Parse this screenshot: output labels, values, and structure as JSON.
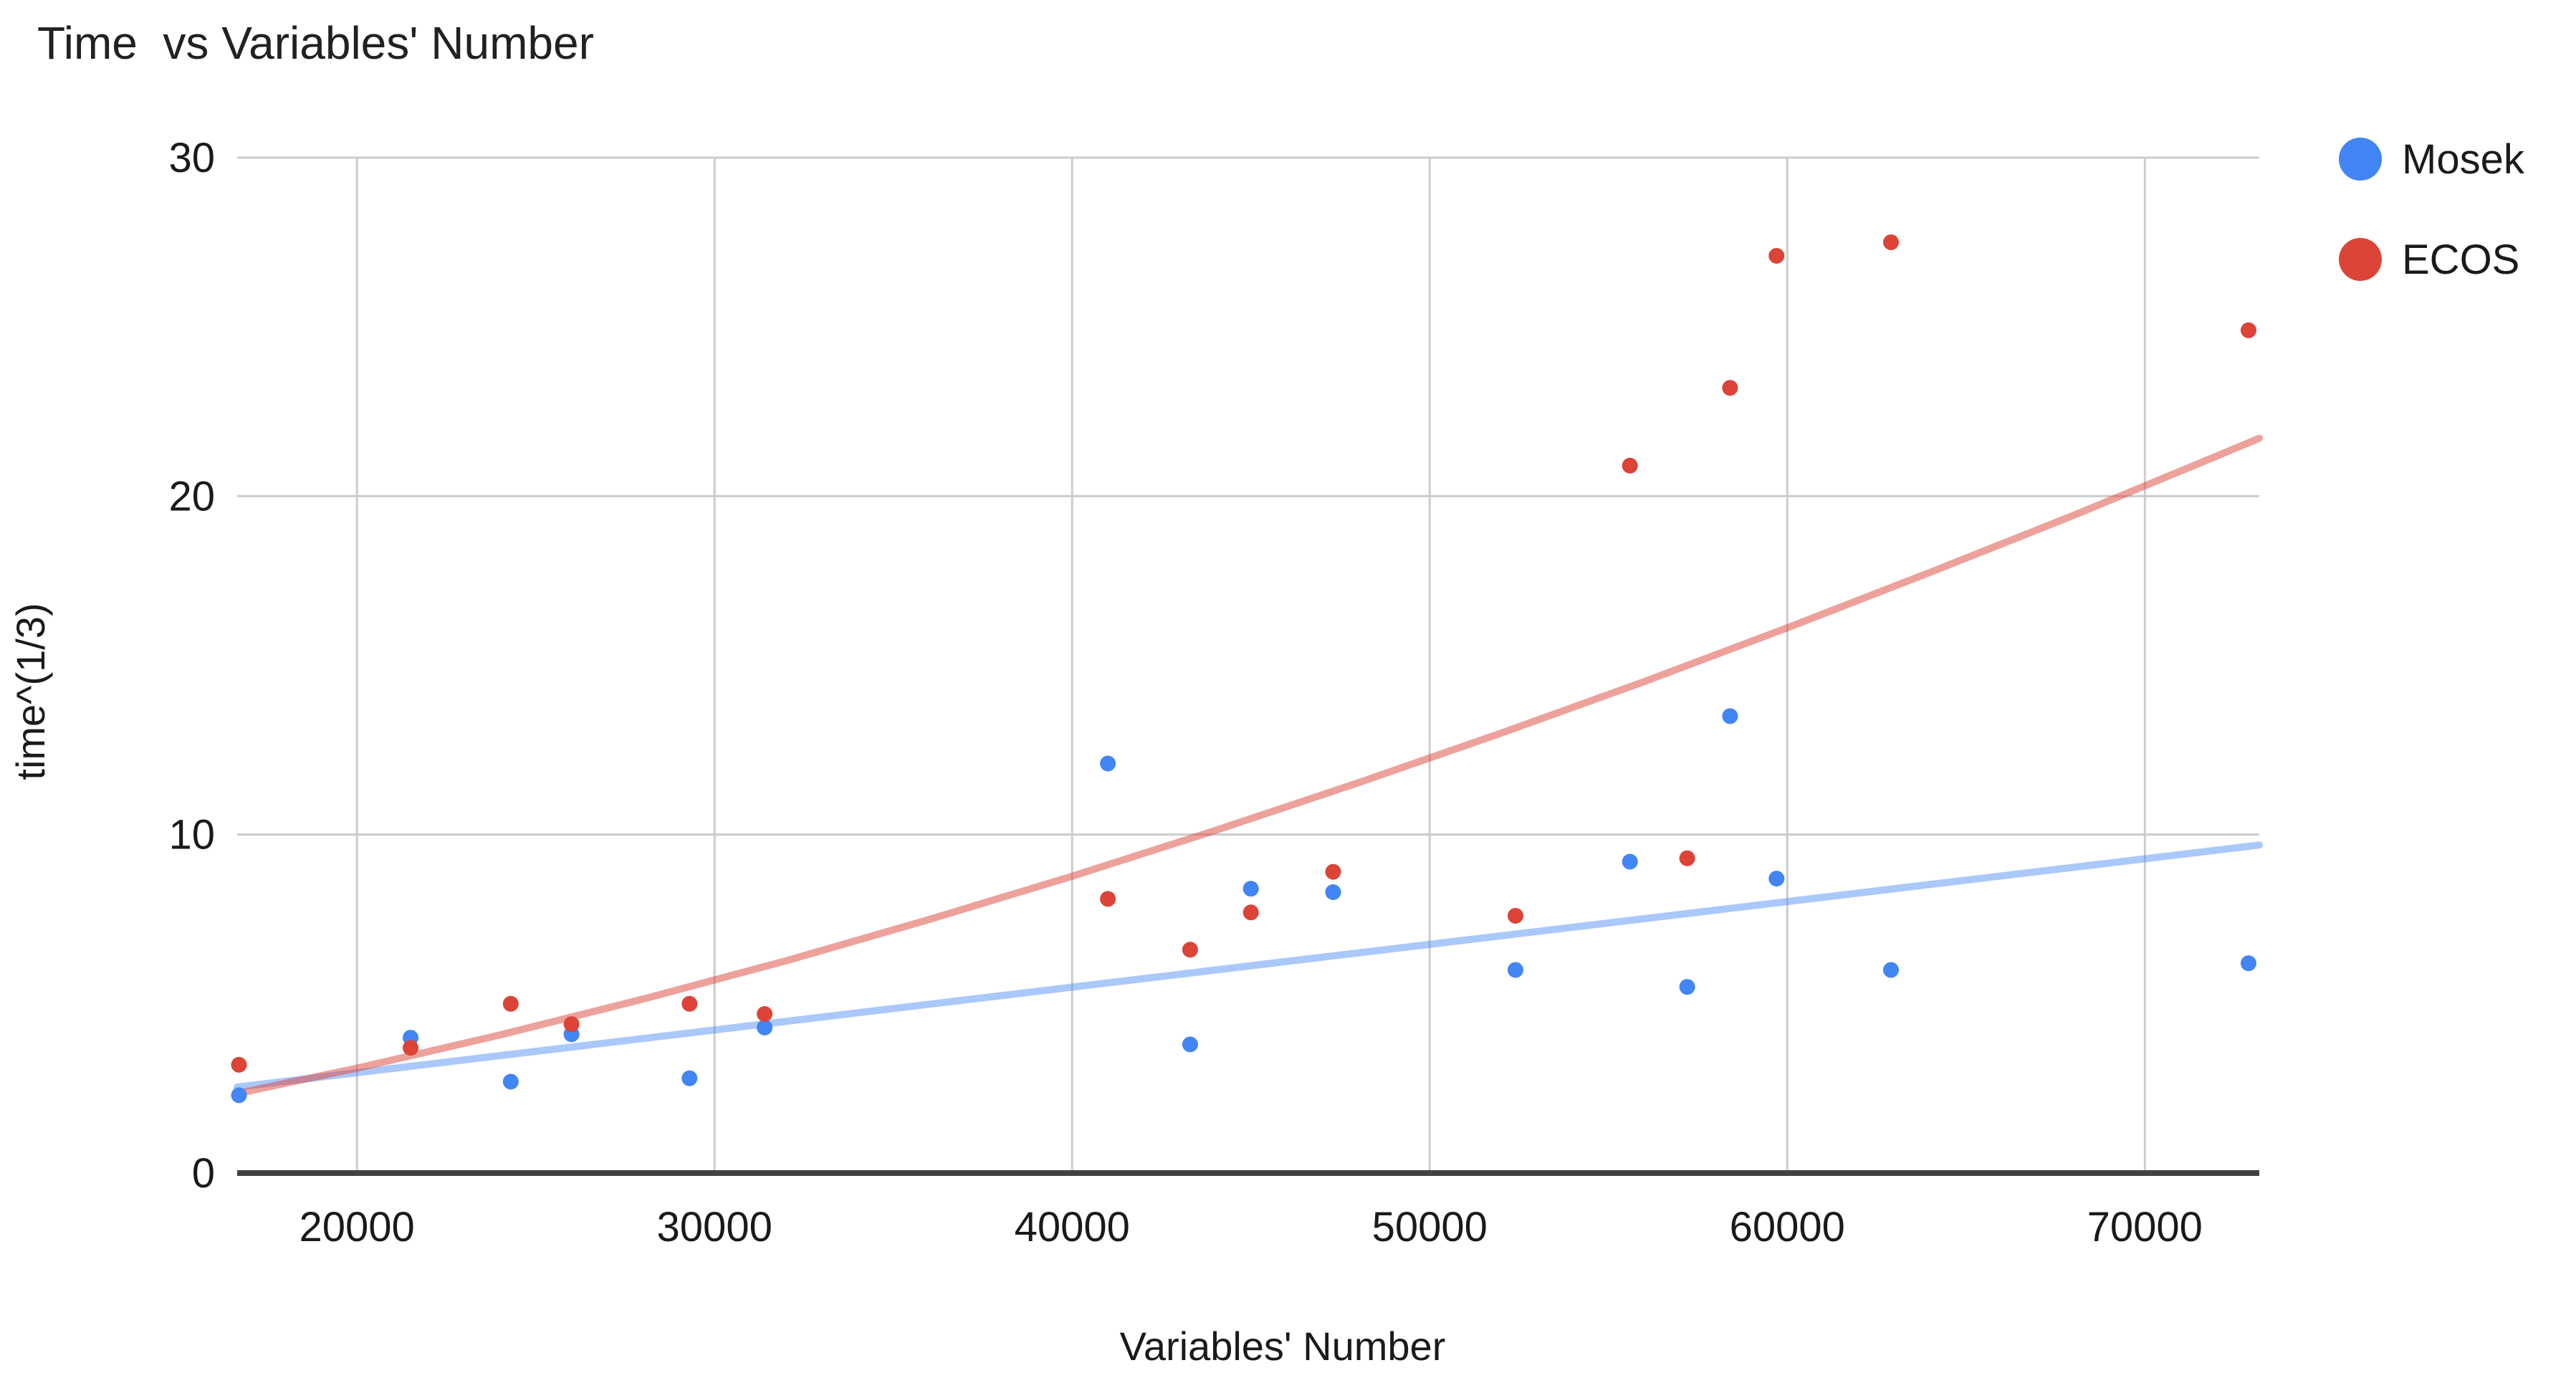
{
  "chart_title": "Time  vs Variables' Number",
  "colors": {
    "mosek_point": "#4285f4",
    "ecos_point": "#db4437",
    "mosek_trend": "rgba(66,133,244,0.45)",
    "ecos_trend": "rgba(219,68,55,0.5)",
    "gridline": "#cccccc",
    "axis_line": "#424242",
    "text": "#1a1a1a",
    "background": "#ffffff"
  },
  "legend": {
    "position": "right",
    "items": [
      {
        "label": "Mosek",
        "color": "#4285f4"
      },
      {
        "label": "ECOS",
        "color": "#db4437"
      }
    ]
  },
  "chart_data": {
    "type": "scatter",
    "title": "Time  vs Variables' Number",
    "xlabel": "Variables' Number",
    "ylabel": "time^(1/3)",
    "xlim": [
      16650,
      73200
    ],
    "ylim": [
      0,
      30
    ],
    "x_ticks": [
      20000,
      30000,
      40000,
      50000,
      60000,
      70000
    ],
    "y_ticks": [
      0,
      10,
      20,
      30
    ],
    "grid": true,
    "series": [
      {
        "name": "Mosek",
        "color": "#4285f4",
        "points": [
          [
            16700,
            2.3
          ],
          [
            21500,
            4.0
          ],
          [
            24300,
            2.7
          ],
          [
            26000,
            4.1
          ],
          [
            29300,
            2.8
          ],
          [
            31400,
            4.3
          ],
          [
            41000,
            12.1
          ],
          [
            43300,
            3.8
          ],
          [
            45000,
            8.4
          ],
          [
            47300,
            8.3
          ],
          [
            52400,
            6.0
          ],
          [
            55600,
            9.2
          ],
          [
            57200,
            5.5
          ],
          [
            58400,
            13.5
          ],
          [
            59700,
            8.7
          ],
          [
            62900,
            6.0
          ],
          [
            72900,
            6.2
          ]
        ],
        "trendline": {
          "type": "linear",
          "samples": [
            [
              16650,
              2.54
            ],
            [
              73200,
              9.69
            ]
          ]
        }
      },
      {
        "name": "ECOS",
        "color": "#db4437",
        "points": [
          [
            16700,
            3.2
          ],
          [
            21500,
            3.7
          ],
          [
            24300,
            5.0
          ],
          [
            26000,
            4.4
          ],
          [
            29300,
            5.0
          ],
          [
            31400,
            4.7
          ],
          [
            41000,
            8.1
          ],
          [
            43300,
            6.6
          ],
          [
            45000,
            7.7
          ],
          [
            47300,
            8.9
          ],
          [
            52400,
            7.6
          ],
          [
            55600,
            20.9
          ],
          [
            57200,
            9.3
          ],
          [
            58400,
            23.2
          ],
          [
            59700,
            27.1
          ],
          [
            62900,
            27.5
          ],
          [
            72900,
            24.9
          ]
        ],
        "trendline": {
          "type": "power",
          "samples": [
            [
              16650,
              2.35
            ],
            [
              20000,
              3.1
            ],
            [
              24000,
              4.08
            ],
            [
              28000,
              5.14
            ],
            [
              32000,
              6.27
            ],
            [
              36000,
              7.49
            ],
            [
              40000,
              8.77
            ],
            [
              44000,
              10.12
            ],
            [
              48000,
              11.53
            ],
            [
              52000,
              13.0
            ],
            [
              56000,
              14.52
            ],
            [
              60000,
              16.11
            ],
            [
              64000,
              17.75
            ],
            [
              68000,
              19.43
            ],
            [
              72000,
              21.18
            ],
            [
              73200,
              21.71
            ]
          ]
        }
      }
    ]
  }
}
